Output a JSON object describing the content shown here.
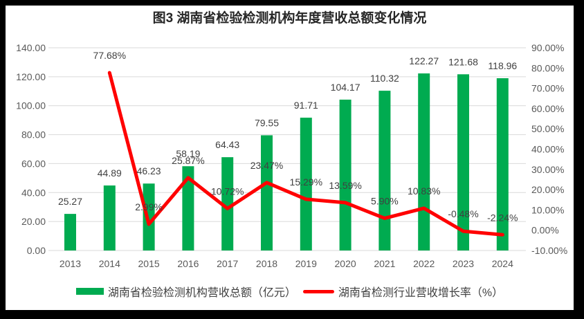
{
  "title": "图3 湖南省检验检测机构年度营收总额变化情况",
  "chart_data": {
    "type": "combo",
    "categories": [
      "2013",
      "2014",
      "2015",
      "2016",
      "2017",
      "2018",
      "2019",
      "2020",
      "2021",
      "2022",
      "2023",
      "2024"
    ],
    "series": [
      {
        "name": "湖南省检验检测机构营收总额（亿元）",
        "type": "bar",
        "axis": "left",
        "color": "#00AB50",
        "values": [
          25.27,
          44.89,
          46.23,
          58.19,
          64.43,
          79.55,
          91.71,
          104.17,
          110.32,
          122.27,
          121.68,
          118.96
        ],
        "labels": [
          "25.27",
          "44.89",
          "46.23",
          "58.19",
          "64.43",
          "79.55",
          "91.71",
          "104.17",
          "110.32",
          "122.27",
          "121.68",
          "118.96"
        ]
      },
      {
        "name": "湖南省检测行业营收增长率（%）",
        "type": "line",
        "axis": "right",
        "color": "#FF0000",
        "values": [
          null,
          77.68,
          2.99,
          25.87,
          10.72,
          23.47,
          15.29,
          13.59,
          5.9,
          10.83,
          -0.48,
          -2.24
        ],
        "labels": [
          "",
          "77.68%",
          "2.99%",
          "25.87%",
          "10.72%",
          "23.47%",
          "15.29%",
          "13.59%",
          "5.90%",
          "10.83%",
          "-0.48%",
          "-2.24%"
        ]
      }
    ],
    "left_axis": {
      "min": 0,
      "max": 140,
      "step": 20,
      "tick_labels": [
        "0.00",
        "20.00",
        "40.00",
        "60.00",
        "80.00",
        "100.00",
        "120.00",
        "140.00"
      ]
    },
    "right_axis": {
      "min": -10,
      "max": 90,
      "step": 10,
      "tick_labels": [
        "-10.00%",
        "0.00%",
        "10.00%",
        "20.00%",
        "30.00%",
        "40.00%",
        "50.00%",
        "60.00%",
        "70.00%",
        "80.00%",
        "90.00%"
      ]
    },
    "grid": "horizontal",
    "legend_position": "bottom",
    "grid_color": "#D9D9D9"
  }
}
